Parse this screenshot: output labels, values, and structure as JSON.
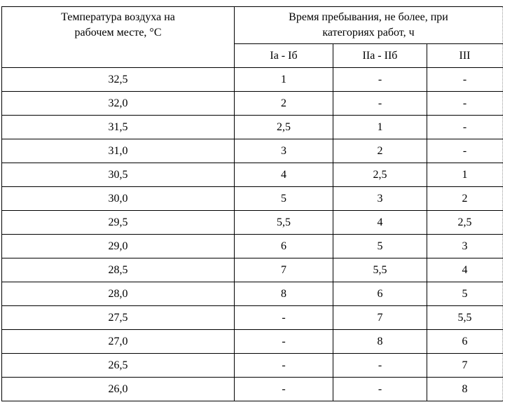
{
  "table": {
    "header": {
      "temperature_label_line1": "Температура воздуха на",
      "temperature_label_line2": "рабочем месте, °С",
      "time_label_line1": "Время пребывания, не более, при",
      "time_label_line2": "категориях работ, ч",
      "categories": [
        "Ia - Iб",
        "IIa - IIб",
        "III"
      ]
    },
    "rows": [
      {
        "temp": "32,5",
        "c1": "1",
        "c2": "-",
        "c3": "-"
      },
      {
        "temp": "32,0",
        "c1": "2",
        "c2": "-",
        "c3": "-"
      },
      {
        "temp": "31,5",
        "c1": "2,5",
        "c2": "1",
        "c3": "-"
      },
      {
        "temp": "31,0",
        "c1": "3",
        "c2": "2",
        "c3": "-"
      },
      {
        "temp": "30,5",
        "c1": "4",
        "c2": "2,5",
        "c3": "1"
      },
      {
        "temp": "30,0",
        "c1": "5",
        "c2": "3",
        "c3": "2"
      },
      {
        "temp": "29,5",
        "c1": "5,5",
        "c2": "4",
        "c3": "2,5"
      },
      {
        "temp": "29,0",
        "c1": "6",
        "c2": "5",
        "c3": "3"
      },
      {
        "temp": "28,5",
        "c1": "7",
        "c2": "5,5",
        "c3": "4"
      },
      {
        "temp": "28,0",
        "c1": "8",
        "c2": "6",
        "c3": "5"
      },
      {
        "temp": "27,5",
        "c1": "-",
        "c2": "7",
        "c3": "5,5"
      },
      {
        "temp": "27,0",
        "c1": "-",
        "c2": "8",
        "c3": "6"
      },
      {
        "temp": "26,5",
        "c1": "-",
        "c2": "-",
        "c3": "7"
      },
      {
        "temp": "26,0",
        "c1": "-",
        "c2": "-",
        "c3": "8"
      }
    ]
  }
}
